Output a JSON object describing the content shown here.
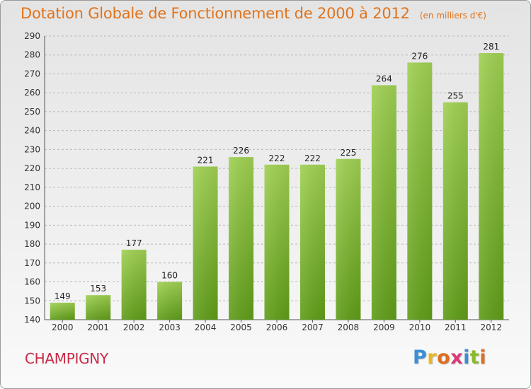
{
  "chart_data": {
    "type": "bar",
    "title": "Dotation Globale de Fonctionnement de 2000 à 2012",
    "unit_label": "(en milliers d'€)",
    "categories": [
      "2000",
      "2001",
      "2002",
      "2003",
      "2004",
      "2005",
      "2006",
      "2007",
      "2008",
      "2009",
      "2010",
      "2011",
      "2012"
    ],
    "values": [
      149,
      153,
      177,
      160,
      221,
      226,
      222,
      222,
      225,
      264,
      276,
      255,
      281
    ],
    "ylim": [
      140,
      290
    ],
    "yticks": [
      140,
      150,
      160,
      170,
      180,
      190,
      200,
      210,
      220,
      230,
      240,
      250,
      260,
      270,
      280,
      290
    ],
    "grid": true,
    "bar_color": "#7dbb2c"
  },
  "commune": "CHAMPIGNY",
  "logo": {
    "letters": [
      "P",
      "r",
      "o",
      "x",
      "i",
      "t",
      "i"
    ],
    "colors": [
      "#3a8fd6",
      "#e8b81f",
      "#e06e1f",
      "#d93a7a",
      "#3a8fd6",
      "#8ab92d",
      "#e06e1f"
    ]
  }
}
